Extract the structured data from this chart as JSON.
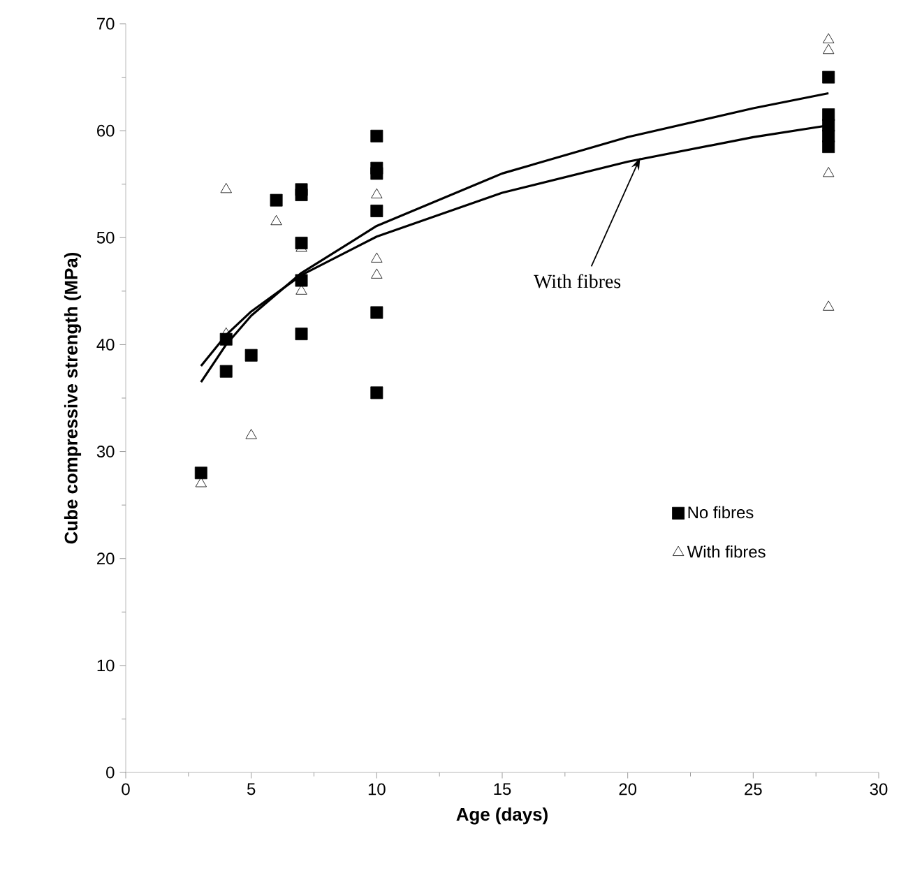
{
  "chart_data": {
    "type": "scatter",
    "xlabel": "Age (days)",
    "ylabel": "Cube compressive strength (MPa)",
    "xlim": [
      0,
      30
    ],
    "xticks": [
      0,
      5,
      10,
      15,
      20,
      25,
      30
    ],
    "ylim": [
      0,
      70
    ],
    "yticks": [
      0,
      10,
      20,
      30,
      40,
      50,
      60,
      70
    ],
    "grid": false,
    "legend": "right",
    "series": [
      {
        "name": "No fibres",
        "color": "#000000",
        "marker": "square",
        "x": [
          3,
          4,
          4,
          5,
          6,
          7,
          7,
          7,
          7,
          7,
          10,
          10,
          10,
          10,
          10,
          10,
          28,
          28,
          28,
          28,
          28
        ],
        "values": [
          28,
          40.5,
          37.5,
          39,
          53.5,
          54.5,
          54,
          49.5,
          46,
          41,
          59.5,
          56.5,
          56,
          52.5,
          43,
          35.5,
          65,
          61.5,
          60.5,
          59.5,
          58.5
        ]
      },
      {
        "name": "With fibres",
        "color": "#000000",
        "marker": "triangle",
        "x": [
          3,
          4,
          4,
          5,
          6,
          7,
          7,
          10,
          10,
          10,
          28,
          28,
          28,
          28
        ],
        "values": [
          27,
          41,
          54.5,
          31.5,
          51.5,
          49,
          45,
          54,
          48,
          46.5,
          68.5,
          67.5,
          56,
          43.5
        ]
      },
      {
        "type": "line",
        "color": "#000000",
        "marker": "none",
        "line_style": "solid",
        "x": [
          3,
          4,
          5,
          7,
          10,
          15,
          20,
          25,
          28
        ],
        "values": [
          36.5,
          40.0,
          42.7,
          46.7,
          51.1,
          56.0,
          59.4,
          62.1,
          63.5
        ]
      },
      {
        "type": "line",
        "color": "#000000",
        "marker": "none",
        "line_style": "solid",
        "x": [
          3,
          4,
          5,
          7,
          10,
          15,
          20,
          25,
          28
        ],
        "values": [
          38.0,
          40.9,
          43.1,
          46.5,
          50.1,
          54.2,
          57.1,
          59.4,
          60.5
        ]
      }
    ],
    "annotations": [
      {
        "text": "With fibres",
        "x": 20.5,
        "y": 57.5
      }
    ]
  }
}
